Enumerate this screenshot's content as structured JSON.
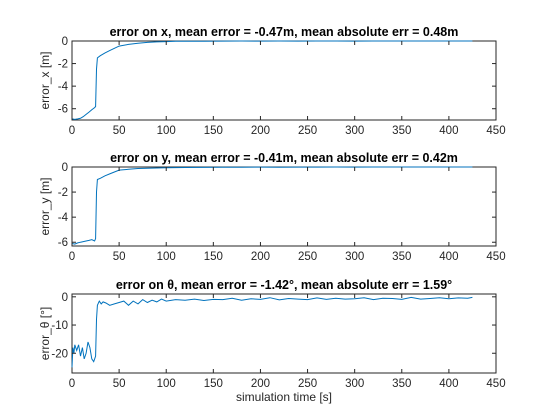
{
  "chart_data": [
    {
      "type": "line",
      "title": "error on x, mean error = -0.47m, mean absolute err = 0.48m",
      "xlabel": "",
      "ylabel": "error_x [m]",
      "xlim": [
        0,
        450
      ],
      "ylim": [
        -7,
        0
      ],
      "xticks": [
        0,
        50,
        100,
        150,
        200,
        250,
        300,
        350,
        400,
        450
      ],
      "yticks": [
        0,
        -2,
        -4,
        -6
      ],
      "grid": false,
      "color": "#0072bd",
      "series": [
        {
          "x": [
            0,
            3,
            6,
            9,
            12,
            15,
            18,
            21,
            24,
            25,
            26,
            27,
            30,
            35,
            40,
            45,
            50,
            60,
            70,
            80,
            90,
            100,
            110,
            120,
            140,
            160,
            180,
            200,
            220,
            240,
            260,
            280,
            300,
            320,
            340,
            360,
            380,
            400,
            425
          ],
          "y": [
            -6.9,
            -6.95,
            -6.9,
            -6.85,
            -6.7,
            -6.5,
            -6.3,
            -6.1,
            -5.9,
            -5.8,
            -2.5,
            -1.5,
            -1.3,
            -1.05,
            -0.85,
            -0.65,
            -0.45,
            -0.3,
            -0.2,
            -0.12,
            -0.08,
            -0.05,
            -0.03,
            -0.02,
            -0.02,
            -0.01,
            0,
            -0.01,
            0,
            -0.01,
            0,
            0,
            -0.01,
            0,
            0,
            0,
            0,
            0,
            0
          ]
        }
      ]
    },
    {
      "type": "line",
      "title": "error on y, mean error = -0.41m, mean absolute err = 0.42m",
      "xlabel": "",
      "ylabel": "error_y [m]",
      "xlim": [
        0,
        450
      ],
      "ylim": [
        -6.3,
        0
      ],
      "xticks": [
        0,
        50,
        100,
        150,
        200,
        250,
        300,
        350,
        400,
        450
      ],
      "yticks": [
        0,
        -2,
        -4,
        -6
      ],
      "grid": false,
      "color": "#0072bd",
      "series": [
        {
          "x": [
            0,
            3,
            6,
            9,
            12,
            15,
            18,
            21,
            24,
            25,
            26,
            27,
            30,
            35,
            40,
            45,
            50,
            60,
            70,
            80,
            90,
            100,
            110,
            120,
            140,
            160,
            180,
            200,
            220,
            240,
            260,
            280,
            300,
            320,
            340,
            360,
            380,
            400,
            425
          ],
          "y": [
            -6.1,
            -6.15,
            -6.05,
            -6.0,
            -5.95,
            -5.9,
            -5.85,
            -5.8,
            -5.9,
            -5.7,
            -2.0,
            -1.0,
            -0.9,
            -0.7,
            -0.55,
            -0.4,
            -0.25,
            -0.18,
            -0.12,
            -0.1,
            -0.08,
            -0.06,
            -0.05,
            -0.04,
            -0.03,
            -0.02,
            -0.02,
            -0.01,
            -0.02,
            -0.01,
            -0.01,
            0,
            -0.01,
            0,
            0,
            0,
            0,
            0,
            0
          ]
        }
      ]
    },
    {
      "type": "line",
      "title": "error on θ, mean error = -1.42°, mean absolute err = 1.59°",
      "xlabel": "simulation time [s]",
      "ylabel": "error_θ [°]",
      "xlim": [
        0,
        450
      ],
      "ylim": [
        -27,
        1
      ],
      "xticks": [
        0,
        50,
        100,
        150,
        200,
        250,
        300,
        350,
        400,
        450
      ],
      "yticks": [
        0,
        -10,
        -20
      ],
      "grid": false,
      "color": "#0072bd",
      "series": [
        {
          "x": [
            0,
            1,
            2,
            3,
            5,
            7,
            9,
            11,
            13,
            15,
            17,
            19,
            21,
            23,
            25,
            26,
            27,
            29,
            31,
            33,
            36,
            40,
            45,
            50,
            55,
            60,
            65,
            70,
            75,
            80,
            85,
            90,
            95,
            100,
            110,
            120,
            130,
            140,
            150,
            160,
            170,
            180,
            190,
            200,
            210,
            220,
            230,
            240,
            250,
            260,
            270,
            280,
            290,
            300,
            310,
            320,
            330,
            340,
            350,
            360,
            370,
            380,
            390,
            400,
            410,
            420,
            425
          ],
          "y": [
            -25,
            -18,
            -20,
            -17,
            -19,
            -17,
            -21,
            -18,
            -22,
            -20,
            -16,
            -18,
            -22,
            -23,
            -21,
            -8,
            -3,
            -1.5,
            -2.5,
            -1.8,
            -2.2,
            -3,
            -2.5,
            -2,
            -1.5,
            -3,
            -1.5,
            -2.5,
            -1,
            -2,
            -1.2,
            -1.8,
            -0.8,
            -1.5,
            -1,
            -1.2,
            -0.8,
            -1.3,
            -0.9,
            -1,
            -0.5,
            -1.2,
            -0.7,
            -0.9,
            -0.3,
            -1.1,
            -0.6,
            -0.8,
            -1,
            -0.4,
            -0.9,
            -0.5,
            -0.8,
            -0.7,
            -0.3,
            -1,
            -0.5,
            -0.6,
            -0.9,
            -0.2,
            -0.8,
            -0.6,
            -0.3,
            -0.7,
            -0.4,
            -0.5,
            -0.2
          ]
        }
      ]
    }
  ]
}
